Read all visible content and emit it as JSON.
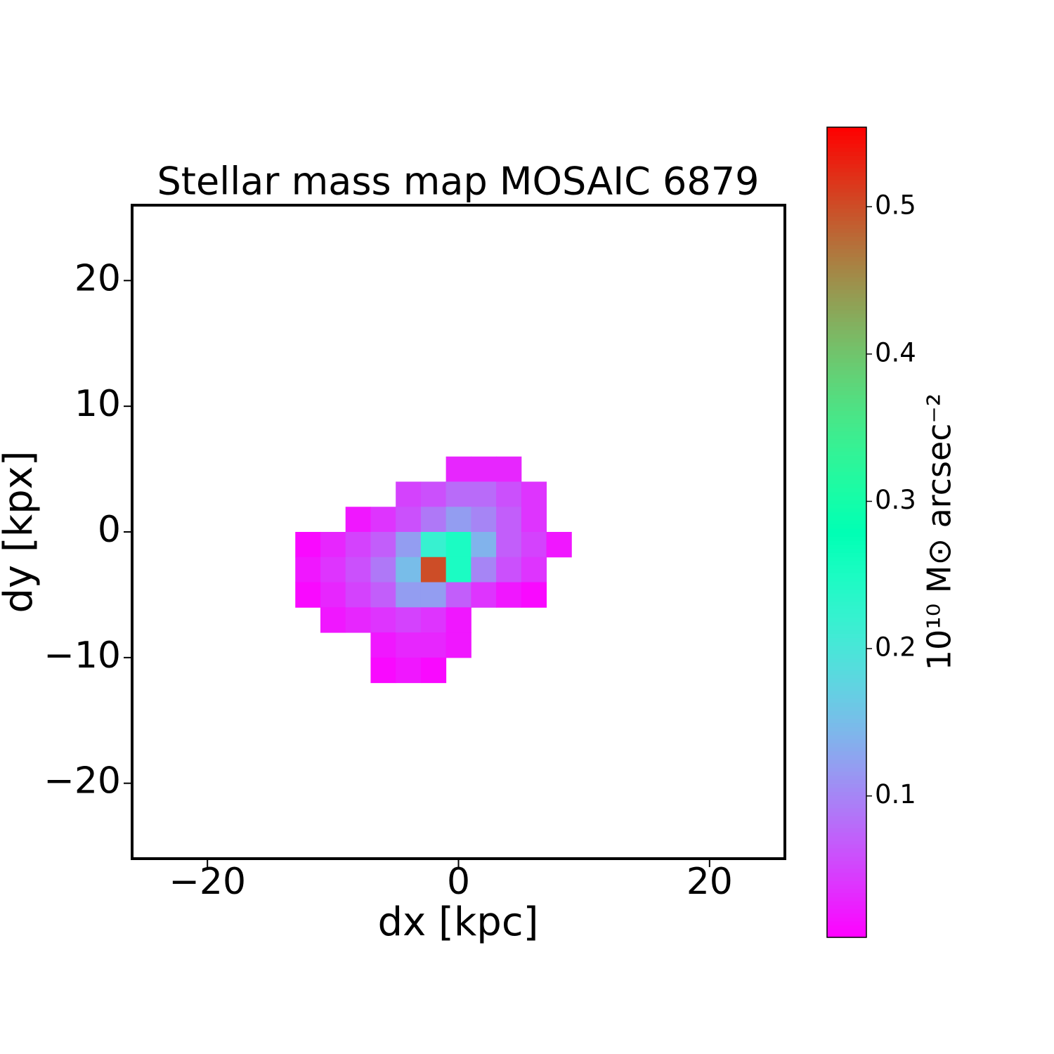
{
  "chart_data": {
    "type": "heatmap",
    "title": "Stellar mass map MOSAIC 6879",
    "x_label": "dx [kpc]",
    "y_label": "dy [kpx]",
    "colorbar_label": "10¹⁰ M⊙ arcsec⁻²",
    "colormap": "rainbow",
    "xlim": [
      -26,
      26
    ],
    "ylim": [
      -26,
      26
    ],
    "xticks": [
      {
        "value": -20,
        "label": "−20"
      },
      0,
      20
    ],
    "yticks": [
      {
        "value": -20,
        "label": "−20"
      },
      {
        "value": -10,
        "label": "−10"
      },
      0,
      10,
      20
    ],
    "clim": [
      0.004,
      0.554
    ],
    "cticks": [
      0.1,
      0.2,
      0.3,
      0.4,
      0.5
    ],
    "x": [
      -12,
      -10,
      -8,
      -6,
      -4,
      -2,
      0,
      2,
      4,
      6,
      8
    ],
    "y": [
      5,
      3,
      1,
      -1,
      -3,
      -5,
      -7,
      -9,
      -11
    ],
    "z": [
      [
        null,
        null,
        null,
        null,
        null,
        null,
        0.03,
        0.03,
        0.03,
        null,
        null
      ],
      [
        null,
        null,
        null,
        null,
        0.05,
        0.06,
        0.08,
        0.08,
        0.06,
        0.04,
        null
      ],
      [
        null,
        null,
        0.02,
        0.04,
        0.06,
        0.09,
        0.12,
        0.1,
        0.07,
        0.04,
        null
      ],
      [
        0.01,
        0.03,
        0.05,
        0.07,
        0.12,
        0.22,
        0.25,
        0.14,
        0.07,
        0.05,
        0.02
      ],
      [
        0.02,
        0.04,
        0.06,
        0.09,
        0.15,
        0.5,
        0.25,
        0.1,
        0.06,
        0.04,
        null
      ],
      [
        0.01,
        0.03,
        0.05,
        0.07,
        0.12,
        0.12,
        0.07,
        0.04,
        0.02,
        0.01,
        null
      ],
      [
        null,
        0.02,
        0.03,
        0.04,
        0.05,
        0.04,
        0.02,
        null,
        null,
        null,
        null
      ],
      [
        null,
        null,
        null,
        0.02,
        0.03,
        0.03,
        0.02,
        null,
        null,
        null,
        null
      ],
      [
        null,
        null,
        null,
        0.01,
        0.02,
        0.01,
        null,
        null,
        null,
        null,
        null
      ]
    ]
  }
}
